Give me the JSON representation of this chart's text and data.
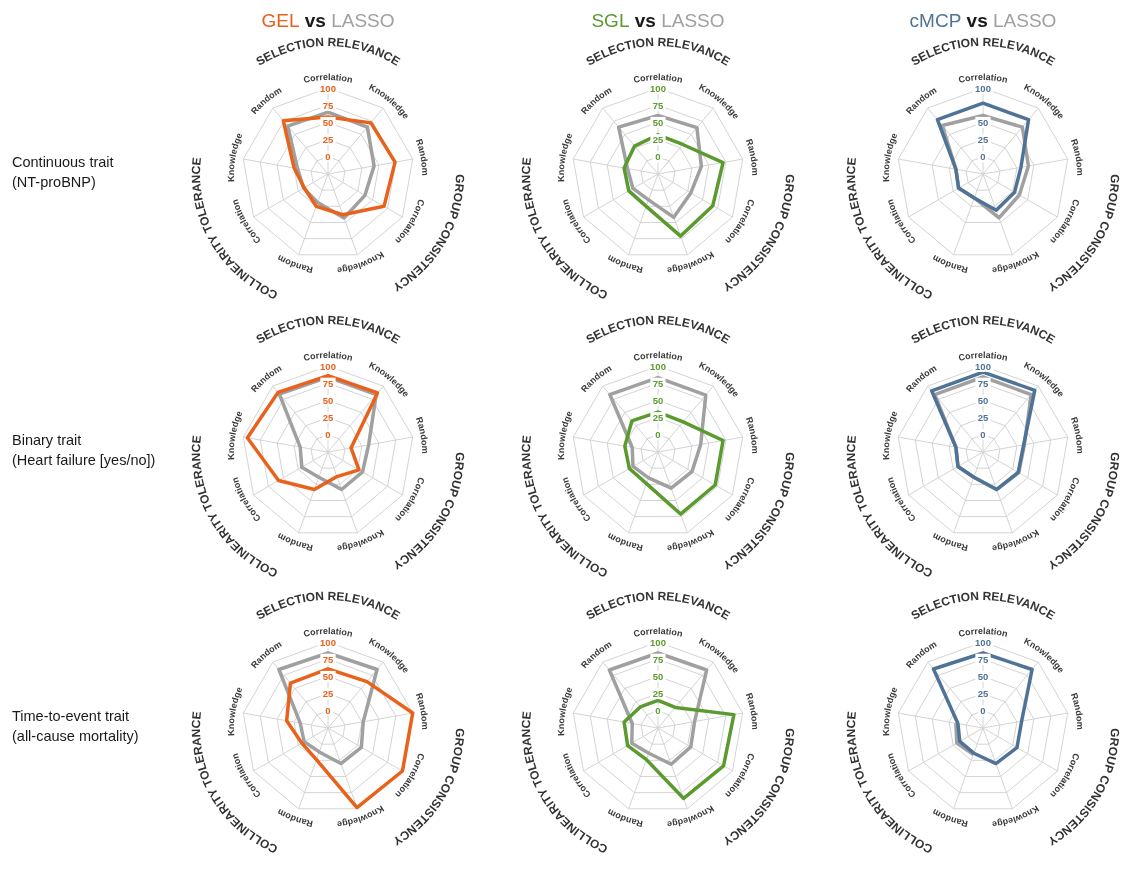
{
  "chart_data": [
    {
      "type": "radar",
      "title": "GEL vs LASSO",
      "ylabel": "Continuous trait\n(NT-proBNP)",
      "categories": [
        "Correlation",
        "Knowledge",
        "Random",
        "Correlation",
        "Knowledge",
        "Random",
        "Correlation",
        "Knowledge",
        "Random"
      ],
      "annotations": [
        "SELECTION RELEVANCE",
        "GROUP CONSISTENCY",
        "COLLINEARITY TOLERANCE"
      ],
      "ylim": [
        -25,
        100
      ],
      "yticks": [
        0,
        25,
        50,
        75,
        100
      ],
      "grid": true,
      "series": [
        {
          "color": "#e8621c",
          "values": [
            58,
            72,
            74,
            69,
            38,
            25,
            15,
            25,
            76
          ]
        },
        {
          "color": "#a0a0a0",
          "values": [
            65,
            64,
            43,
            37,
            43,
            19,
            16,
            20,
            66
          ]
        }
      ]
    },
    {
      "type": "radar",
      "title": "SGL vs LASSO",
      "categories": [
        "Correlation",
        "Knowledge",
        "Random",
        "Correlation",
        "Knowledge",
        "Random",
        "Correlation",
        "Knowledge",
        "Random"
      ],
      "annotations": [
        "SELECTION RELEVANCE",
        "GROUP CONSISTENCY",
        "COLLINEARITY TOLERANCE"
      ],
      "ylim": [
        -25,
        100
      ],
      "yticks": [
        0,
        25,
        50,
        75,
        100
      ],
      "grid": true,
      "series": [
        {
          "color": "#5a9a2e",
          "values": [
            32,
            31,
            71,
            67,
            71,
            25,
            24,
            25,
            28
          ]
        },
        {
          "color": "#a0a0a0",
          "values": [
            60,
            63,
            39,
            30,
            42,
            15,
            17,
            20,
            64
          ]
        }
      ]
    },
    {
      "type": "radar",
      "title": "cMCP vs LASSO",
      "categories": [
        "Correlation",
        "Knowledge",
        "Random",
        "Correlation",
        "Knowledge",
        "Random",
        "Correlation",
        "Knowledge",
        "Random"
      ],
      "annotations": [
        "SELECTION RELEVANCE",
        "GROUP CONSISTENCY",
        "COLLINEARITY TOLERANCE"
      ],
      "ylim": [
        -25,
        100
      ],
      "yticks": [
        0,
        25,
        50,
        100
      ],
      "grid": true,
      "series": [
        {
          "color": "#4f7396",
          "values": [
            78,
            78,
            31,
            28,
            31,
            12,
            16,
            15,
            78
          ]
        },
        {
          "color": "#a0a0a0",
          "values": [
            60,
            64,
            42,
            36,
            43,
            12,
            16,
            15,
            67
          ]
        }
      ]
    },
    {
      "type": "radar",
      "ylabel": "Binary trait\n(Heart failure [yes/no])",
      "categories": [
        "Correlation",
        "Knowledge",
        "Random",
        "Correlation",
        "Knowledge",
        "Random",
        "Correlation",
        "Knowledge",
        "Random"
      ],
      "annotations": [
        "SELECTION RELEVANCE",
        "GROUP CONSISTENCY",
        "COLLINEARITY TOLERANCE"
      ],
      "ylim": [
        -25,
        100
      ],
      "yticks": [
        0,
        25,
        50,
        75,
        100
      ],
      "grid": true,
      "series": [
        {
          "color": "#e8621c",
          "values": [
            86,
            87,
            9,
            27,
            13,
            33,
            58,
            94,
            88
          ]
        },
        {
          "color": "#a0a0a0",
          "values": [
            84,
            84,
            35,
            33,
            33,
            14,
            19,
            16,
            85
          ]
        }
      ]
    },
    {
      "type": "radar",
      "categories": [
        "Correlation",
        "Knowledge",
        "Random",
        "Correlation",
        "Knowledge",
        "Random",
        "Correlation",
        "Knowledge",
        "Random"
      ],
      "annotations": [
        "SELECTION RELEVANCE",
        "GROUP CONSISTENCY",
        "COLLINEARITY TOLERANCE"
      ],
      "ylim": [
        -25,
        100
      ],
      "yticks": [
        0,
        25,
        50,
        75,
        100
      ],
      "grid": true,
      "series": [
        {
          "color": "#5a9a2e",
          "values": [
            33,
            32,
            71,
            71,
            71,
            24,
            23,
            24,
            34
          ]
        },
        {
          "color": "#a0a0a0",
          "values": [
            83,
            83,
            38,
            32,
            31,
            15,
            17,
            13,
            84
          ]
        }
      ]
    },
    {
      "type": "radar",
      "categories": [
        "Correlation",
        "Knowledge",
        "Random",
        "Correlation",
        "Knowledge",
        "Random",
        "Correlation",
        "Knowledge",
        "Random"
      ],
      "annotations": [
        "SELECTION RELEVANCE",
        "GROUP CONSISTENCY",
        "COLLINEARITY TOLERANCE"
      ],
      "ylim": [
        -25,
        100
      ],
      "yticks": [
        0,
        25,
        50,
        75,
        100
      ],
      "grid": true,
      "series": [
        {
          "color": "#4f7396",
          "values": [
            91,
            92,
            35,
            34,
            33,
            14,
            17,
            15,
            91
          ]
        },
        {
          "color": "#a0a0a0",
          "values": [
            84,
            84,
            36,
            35,
            33,
            14,
            17,
            15,
            84
          ]
        }
      ]
    },
    {
      "type": "radar",
      "ylabel": "Time-to-event trait\n(all-cause mortality)",
      "categories": [
        "Correlation",
        "Knowledge",
        "Random",
        "Correlation",
        "Knowledge",
        "Random",
        "Correlation",
        "Knowledge",
        "Random"
      ],
      "annotations": [
        "SELECTION RELEVANCE",
        "GROUP CONSISTENCY",
        "COLLINEARITY TOLERANCE"
      ],
      "ylim": [
        -25,
        100
      ],
      "yticks": [
        0,
        25,
        50,
        75,
        100
      ],
      "grid": true,
      "series": [
        {
          "color": "#e8621c",
          "values": [
            61,
            63,
            100,
            100,
            98,
            24,
            19,
            36,
            60
          ]
        },
        {
          "color": "#a0a0a0",
          "values": [
            84,
            86,
            27,
            31,
            30,
            12,
            15,
            16,
            86
          ]
        }
      ]
    },
    {
      "type": "radar",
      "categories": [
        "Correlation",
        "Knowledge",
        "Random",
        "Correlation",
        "Knowledge",
        "Random",
        "Correlation",
        "Knowledge",
        "Random"
      ],
      "annotations": [
        "SELECTION RELEVANCE",
        "GROUP CONSISTENCY",
        "COLLINEARITY TOLERANCE"
      ],
      "ylim": [
        -25,
        100
      ],
      "yticks": [
        0,
        25,
        50,
        75,
        100
      ],
      "grid": true,
      "series": [
        {
          "color": "#5a9a2e",
          "values": [
            15,
            14,
            87,
            85,
            84,
            24,
            26,
            25,
            15
          ]
        },
        {
          "color": "#a0a0a0",
          "values": [
            84,
            85,
            29,
            30,
            31,
            14,
            19,
            13,
            85
          ]
        }
      ]
    },
    {
      "type": "radar",
      "categories": [
        "Correlation",
        "Knowledge",
        "Random",
        "Correlation",
        "Knowledge",
        "Random",
        "Correlation",
        "Knowledge",
        "Random"
      ],
      "annotations": [
        "SELECTION RELEVANCE",
        "GROUP CONSISTENCY",
        "COLLINEARITY TOLERANCE"
      ],
      "ylim": [
        -25,
        100
      ],
      "yticks": [
        0,
        25,
        50,
        75,
        100
      ],
      "grid": true,
      "series": [
        {
          "color": "#4f7396",
          "values": [
            84,
            86,
            32,
            32,
            30,
            14,
            14,
            12,
            87
          ]
        },
        {
          "color": "#a0a0a0",
          "values": [
            null,
            null,
            null,
            null,
            null,
            16,
            19,
            15,
            null
          ]
        }
      ]
    }
  ]
}
